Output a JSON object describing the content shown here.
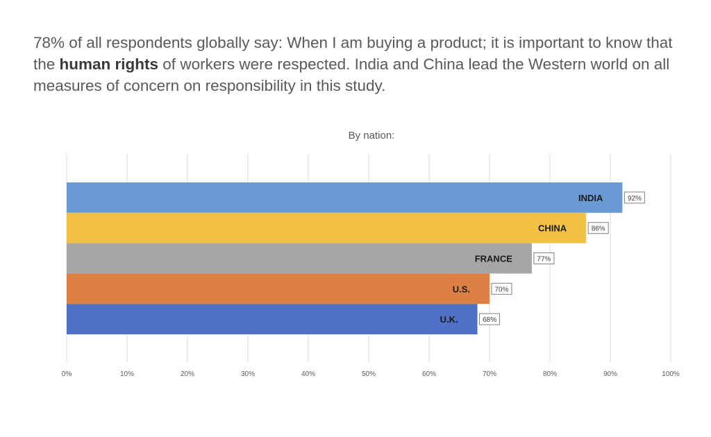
{
  "headline": {
    "part1": "78% of all respondents globally say: When I am buying a product; it is important to know that the ",
    "bold": "human rights",
    "part2": " of workers were respected. India and China lead the Western world on all measures of concern on responsibility in this study."
  },
  "chart_data": {
    "type": "bar",
    "orientation": "horizontal",
    "title": "By nation:",
    "categories": [
      "INDIA",
      "CHINA",
      "FRANCE",
      "U.S.",
      "U.K."
    ],
    "values": [
      92,
      86,
      77,
      70,
      68
    ],
    "data_labels": [
      "92%",
      "86%",
      "77%",
      "70%",
      "68%"
    ],
    "colors": [
      "#6a9ad4",
      "#f2c143",
      "#a6a6a6",
      "#dc8043",
      "#4f70c4"
    ],
    "xlim": [
      0,
      100
    ],
    "xticks": [
      0,
      10,
      20,
      30,
      40,
      50,
      60,
      70,
      80,
      90,
      100
    ],
    "xtick_labels": [
      "0%",
      "10%",
      "20%",
      "30%",
      "40%",
      "50%",
      "60%",
      "70%",
      "80%",
      "90%",
      "100%"
    ],
    "grid": true,
    "legend": "none"
  }
}
